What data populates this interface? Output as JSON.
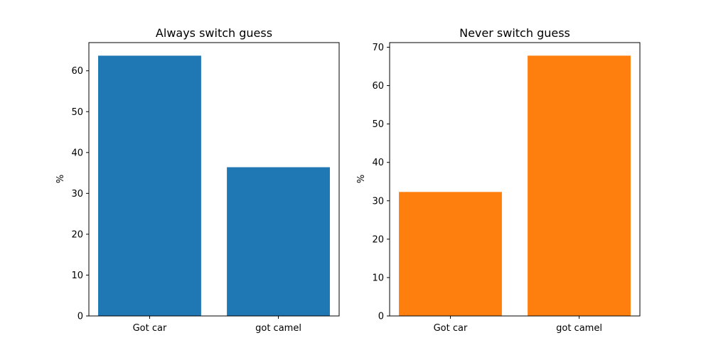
{
  "chart_data": [
    {
      "type": "bar",
      "title": "Always switch guess",
      "xlabel": "",
      "ylabel": "%",
      "categories": [
        "Got car",
        "got camel"
      ],
      "values": [
        63.7,
        36.4
      ],
      "ylim": [
        0,
        66.9
      ],
      "yticks": [
        0,
        10,
        20,
        30,
        40,
        50,
        60
      ],
      "color": "#1f77b4",
      "grid": false
    },
    {
      "type": "bar",
      "title": "Never switch guess",
      "xlabel": "",
      "ylabel": "%",
      "categories": [
        "Got car",
        "got camel"
      ],
      "values": [
        32.3,
        67.8
      ],
      "ylim": [
        0,
        71.2
      ],
      "yticks": [
        0,
        10,
        20,
        30,
        40,
        50,
        60,
        70
      ],
      "color": "#ff7f0e",
      "grid": false
    }
  ]
}
